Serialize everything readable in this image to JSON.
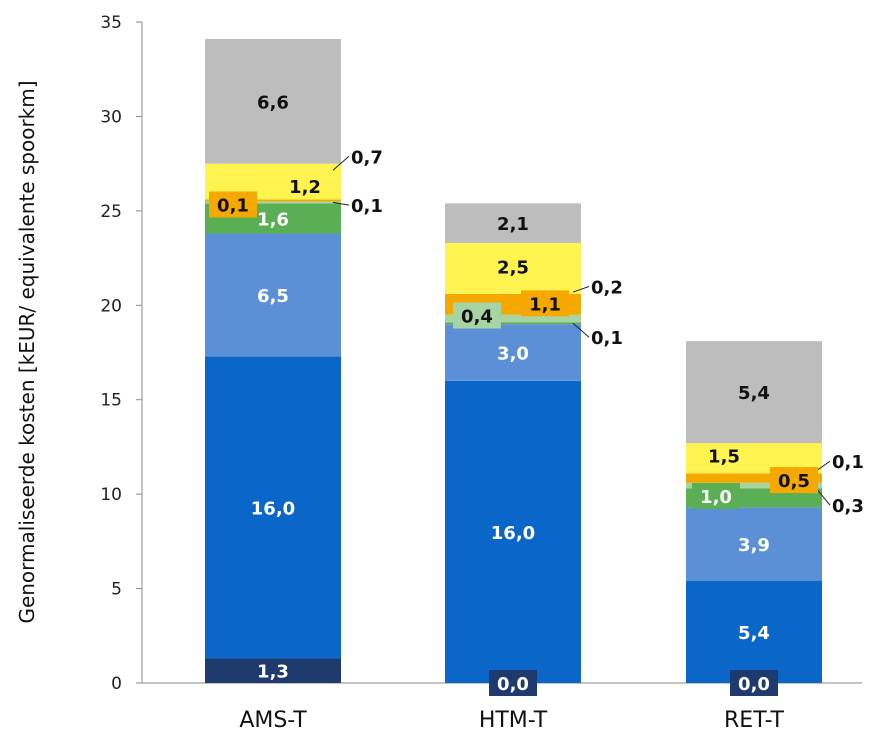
{
  "chart_data": {
    "type": "bar",
    "stacked": true,
    "title": "",
    "xlabel": "",
    "ylabel": "Genormaliseerde kosten [kEUR/ equivalente spoorkm]",
    "ylim": [
      0,
      35
    ],
    "yticks": [
      "0",
      "5",
      "10",
      "15",
      "20",
      "25",
      "30",
      "35"
    ],
    "categories": [
      "AMS-T",
      "HTM-T",
      "RET-T"
    ],
    "grid": false,
    "legend": "none",
    "series": [
      {
        "color": "#1f3a6e",
        "values": [
          1.3,
          0.0,
          0.0
        ],
        "labels": [
          "1,3",
          "0,0",
          "0,0"
        ]
      },
      {
        "color": "#0a66c8",
        "values": [
          16.0,
          16.0,
          5.4
        ],
        "labels": [
          "16,0",
          "16,0",
          "5,4"
        ]
      },
      {
        "color": "#5b8fd6",
        "values": [
          6.5,
          3.0,
          3.9
        ],
        "labels": [
          "6,5",
          "3,0",
          "3,9"
        ]
      },
      {
        "color": "#5aae54",
        "values": [
          1.6,
          0.1,
          1.0
        ],
        "labels": [
          "1,6",
          "0,1",
          "1,0"
        ]
      },
      {
        "color": "#a8d4a4",
        "values": [
          0.1,
          0.4,
          0.3
        ],
        "labels": [
          "0,1",
          "0,4",
          "0,3"
        ]
      },
      {
        "color": "#f5a800",
        "values": [
          0.1,
          1.1,
          0.5
        ],
        "labels": [
          "0,1",
          "1,1",
          "0,5"
        ]
      },
      {
        "color": "#fff44f",
        "values": [
          1.2,
          0.2,
          0.1
        ],
        "labels": [
          "1,2",
          "0,2",
          "0,1"
        ]
      },
      {
        "color": "#fff44f",
        "values": [
          0.7,
          2.5,
          1.5
        ],
        "labels": [
          "0,7",
          "2,5",
          "1,5"
        ]
      },
      {
        "color": "#bdbdbd",
        "values": [
          6.6,
          2.1,
          5.4
        ],
        "labels": [
          "6,6",
          "2,1",
          "5,4"
        ]
      }
    ]
  }
}
